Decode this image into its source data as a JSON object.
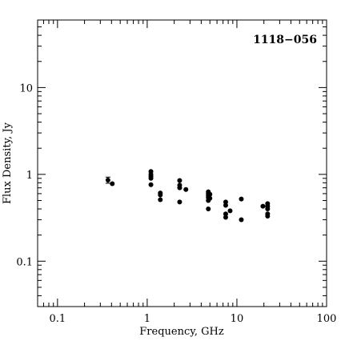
{
  "chart_data": {
    "type": "scatter",
    "source_label": "1118−056",
    "xlabel": "Frequency, GHz",
    "ylabel": "Flux Density, Jy",
    "x_scale": "log",
    "y_scale": "log",
    "xlim": [
      0.06,
      100
    ],
    "ylim": [
      0.03,
      60
    ],
    "x_ticks": [
      {
        "value": 0.1,
        "label": "0.1"
      },
      {
        "value": 1,
        "label": "1"
      },
      {
        "value": 10,
        "label": "10"
      },
      {
        "value": 100,
        "label": "100"
      }
    ],
    "y_ticks": [
      {
        "value": 0.1,
        "label": "0.1"
      },
      {
        "value": 1,
        "label": "1"
      },
      {
        "value": 10,
        "label": "10"
      }
    ],
    "grid": false,
    "legend": "none",
    "marker_color": "#000000",
    "points": [
      {
        "x": 0.365,
        "y": 0.86,
        "yerr": 0.07
      },
      {
        "x": 0.408,
        "y": 0.78
      },
      {
        "x": 1.1,
        "y": 1.08
      },
      {
        "x": 1.1,
        "y": 1.0
      },
      {
        "x": 1.1,
        "y": 0.95
      },
      {
        "x": 1.1,
        "y": 0.9
      },
      {
        "x": 1.1,
        "y": 0.76
      },
      {
        "x": 1.4,
        "y": 0.61
      },
      {
        "x": 1.4,
        "y": 0.58
      },
      {
        "x": 1.4,
        "y": 0.51
      },
      {
        "x": 2.3,
        "y": 0.85
      },
      {
        "x": 2.3,
        "y": 0.75
      },
      {
        "x": 2.3,
        "y": 0.7
      },
      {
        "x": 2.3,
        "y": 0.48
      },
      {
        "x": 2.7,
        "y": 0.67
      },
      {
        "x": 4.8,
        "y": 0.63
      },
      {
        "x": 4.8,
        "y": 0.6
      },
      {
        "x": 4.8,
        "y": 0.57
      },
      {
        "x": 4.8,
        "y": 0.54
      },
      {
        "x": 4.8,
        "y": 0.5
      },
      {
        "x": 4.8,
        "y": 0.4
      },
      {
        "x": 5.0,
        "y": 0.59
      },
      {
        "x": 5.0,
        "y": 0.53
      },
      {
        "x": 7.5,
        "y": 0.48
      },
      {
        "x": 7.5,
        "y": 0.44
      },
      {
        "x": 7.5,
        "y": 0.35
      },
      {
        "x": 7.5,
        "y": 0.32
      },
      {
        "x": 8.4,
        "y": 0.38
      },
      {
        "x": 11.2,
        "y": 0.52
      },
      {
        "x": 11.2,
        "y": 0.3
      },
      {
        "x": 19.5,
        "y": 0.43
      },
      {
        "x": 22,
        "y": 0.46
      },
      {
        "x": 22,
        "y": 0.43
      },
      {
        "x": 22,
        "y": 0.4
      },
      {
        "x": 22,
        "y": 0.35
      },
      {
        "x": 22,
        "y": 0.33
      }
    ]
  }
}
